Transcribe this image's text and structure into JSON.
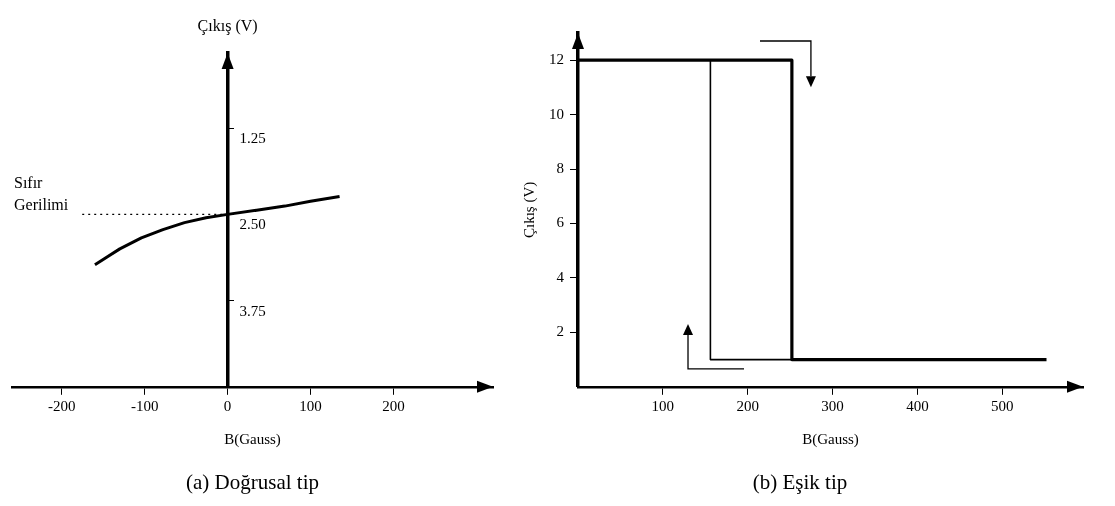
{
  "chart_data": [
    {
      "type": "line",
      "title": "(a) Doğrusal tip",
      "xlabel": "B(Gauss)",
      "ylabel": "Çıkış (V)",
      "color": "#000000",
      "marker": "none",
      "grid": false,
      "x": [
        -160,
        -130,
        -104,
        -78,
        -52,
        -26,
        0,
        35,
        69,
        100,
        135
      ],
      "values": [
        3.23,
        3.0,
        2.84,
        2.72,
        2.62,
        2.55,
        2.5,
        2.44,
        2.38,
        2.31,
        2.24
      ],
      "xlim": [
        -260,
        320
      ],
      "xticks": [
        -200,
        -100,
        0,
        100,
        200
      ],
      "ylim": [
        5,
        0.16
      ],
      "yticks": [
        1.25,
        {
          "value": 2.5,
          "label": "2.50"
        },
        3.75
      ],
      "ref_lines": [
        {
          "axis": "y",
          "value": 2.5,
          "label": "Sıfır Gerilimi",
          "line_style": "dotted"
        }
      ]
    },
    {
      "type": "line",
      "title": "(b) Eşik tip",
      "xlabel": "B(Gauss)",
      "ylabel": "Çıkış (V)",
      "marker": "none",
      "grid": false,
      "series": [
        {
          "color": "#000000",
          "x": [
            0,
            252,
            252,
            552
          ],
          "values": [
            12,
            12,
            1,
            1
          ]
        },
        {
          "color": "#000000",
          "x": [
            252,
            156,
            156
          ],
          "values": [
            1,
            1,
            12
          ]
        }
      ],
      "xlim": [
        0,
        595
      ],
      "xticks": [
        100,
        200,
        300,
        400,
        500
      ],
      "ylim": [
        0,
        13
      ],
      "yticks": [
        2,
        4,
        6,
        8,
        10,
        12
      ]
    }
  ]
}
